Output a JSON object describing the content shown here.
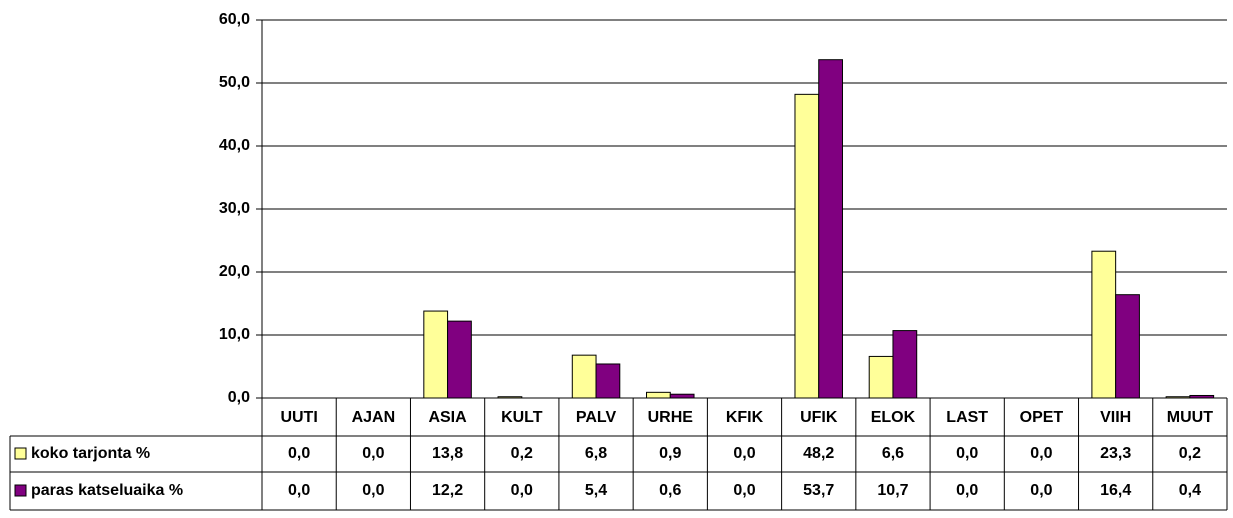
{
  "chart_data": {
    "type": "bar",
    "categories": [
      "UUTI",
      "AJAN",
      "ASIA",
      "KULT",
      "PALV",
      "URHE",
      "KFIK",
      "UFIK",
      "ELOK",
      "LAST",
      "OPET",
      "VIIH",
      "MUUT"
    ],
    "series": [
      {
        "name": "koko tarjonta %",
        "color": "#ffff99",
        "values": [
          0,
          0,
          13.8,
          0.2,
          6.8,
          0.9,
          0,
          48.2,
          6.6,
          0,
          0,
          23.3,
          0.2
        ],
        "value_labels": [
          "0,0",
          "0,0",
          "13,8",
          "0,2",
          "6,8",
          "0,9",
          "0,0",
          "48,2",
          "6,6",
          "0,0",
          "0,0",
          "23,3",
          "0,2"
        ]
      },
      {
        "name": "paras katseluaika %",
        "color": "#800080",
        "values": [
          0,
          0,
          12.2,
          0,
          5.4,
          0.6,
          0,
          53.7,
          10.7,
          0,
          0,
          16.4,
          0.4
        ],
        "value_labels": [
          "0,0",
          "0,0",
          "12,2",
          "0,0",
          "5,4",
          "0,6",
          "0,0",
          "53,7",
          "10,7",
          "0,0",
          "0,0",
          "16,4",
          "0,4"
        ]
      }
    ],
    "ylim": [
      0,
      60
    ],
    "yticks": [
      {
        "value": 0,
        "label": "0,0"
      },
      {
        "value": 10,
        "label": "10,0"
      },
      {
        "value": 20,
        "label": "20,0"
      },
      {
        "value": 30,
        "label": "30,0"
      },
      {
        "value": 40,
        "label": "40,0"
      },
      {
        "value": 50,
        "label": "50,0"
      },
      {
        "value": 60,
        "label": "60,0"
      }
    ],
    "grid": true
  }
}
